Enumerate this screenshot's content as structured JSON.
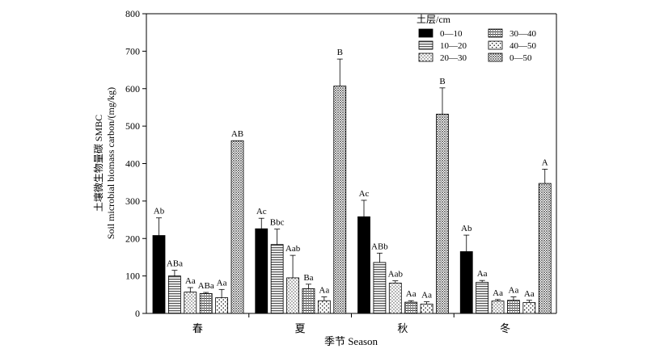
{
  "chart_data": {
    "type": "bar",
    "title": "",
    "xlabel": "季节 Season",
    "ylabel_line1": "土壤微生物量碳 SMBC",
    "ylabel_line2": "Soil microbial biomass carbon/(mg/kg)",
    "ylim": [
      0,
      800
    ],
    "yticks": [
      "0",
      "100",
      "200",
      "300",
      "400",
      "500",
      "600",
      "700",
      "800"
    ],
    "categories": [
      "春",
      "夏",
      "秋",
      "冬"
    ],
    "legend": {
      "title": "土层/cm",
      "placement": "top-right"
    },
    "series": [
      {
        "name": "0—10",
        "pattern": "solid",
        "values": [
          208,
          226,
          258,
          165
        ],
        "errors": [
          47,
          28,
          44,
          44
        ],
        "labels": [
          "Ab",
          "Ac",
          "Ac",
          "Ab"
        ]
      },
      {
        "name": "10—20",
        "pattern": "hlines",
        "values": [
          100,
          184,
          136,
          83
        ],
        "errors": [
          15,
          41,
          25,
          5
        ],
        "labels": [
          "ABa",
          "Bbc",
          "ABb",
          "Aa"
        ]
      },
      {
        "name": "20—30",
        "pattern": "dots-light",
        "values": [
          57,
          95,
          81,
          33
        ],
        "errors": [
          12,
          60,
          6,
          4
        ],
        "labels": [
          "Aa",
          "Aab",
          "Aab",
          "Aa"
        ]
      },
      {
        "name": "30—40",
        "pattern": "dlines",
        "values": [
          53,
          66,
          30,
          35
        ],
        "errors": [
          3,
          12,
          4,
          9
        ],
        "labels": [
          "ABa",
          "Ba",
          "Aa",
          "Aa"
        ]
      },
      {
        "name": "40—50",
        "pattern": "dots-sparse",
        "values": [
          42,
          34,
          25,
          29
        ],
        "errors": [
          22,
          10,
          6,
          6
        ],
        "labels": [
          "Aa",
          "Aa",
          "Aa",
          "Aa"
        ]
      },
      {
        "name": "0—50",
        "pattern": "dots-dense",
        "values": [
          461,
          607,
          532,
          347
        ],
        "errors": [
          0,
          72,
          70,
          38
        ],
        "labels": [
          "AB",
          "B",
          "B",
          "A"
        ]
      }
    ],
    "grid": false
  }
}
